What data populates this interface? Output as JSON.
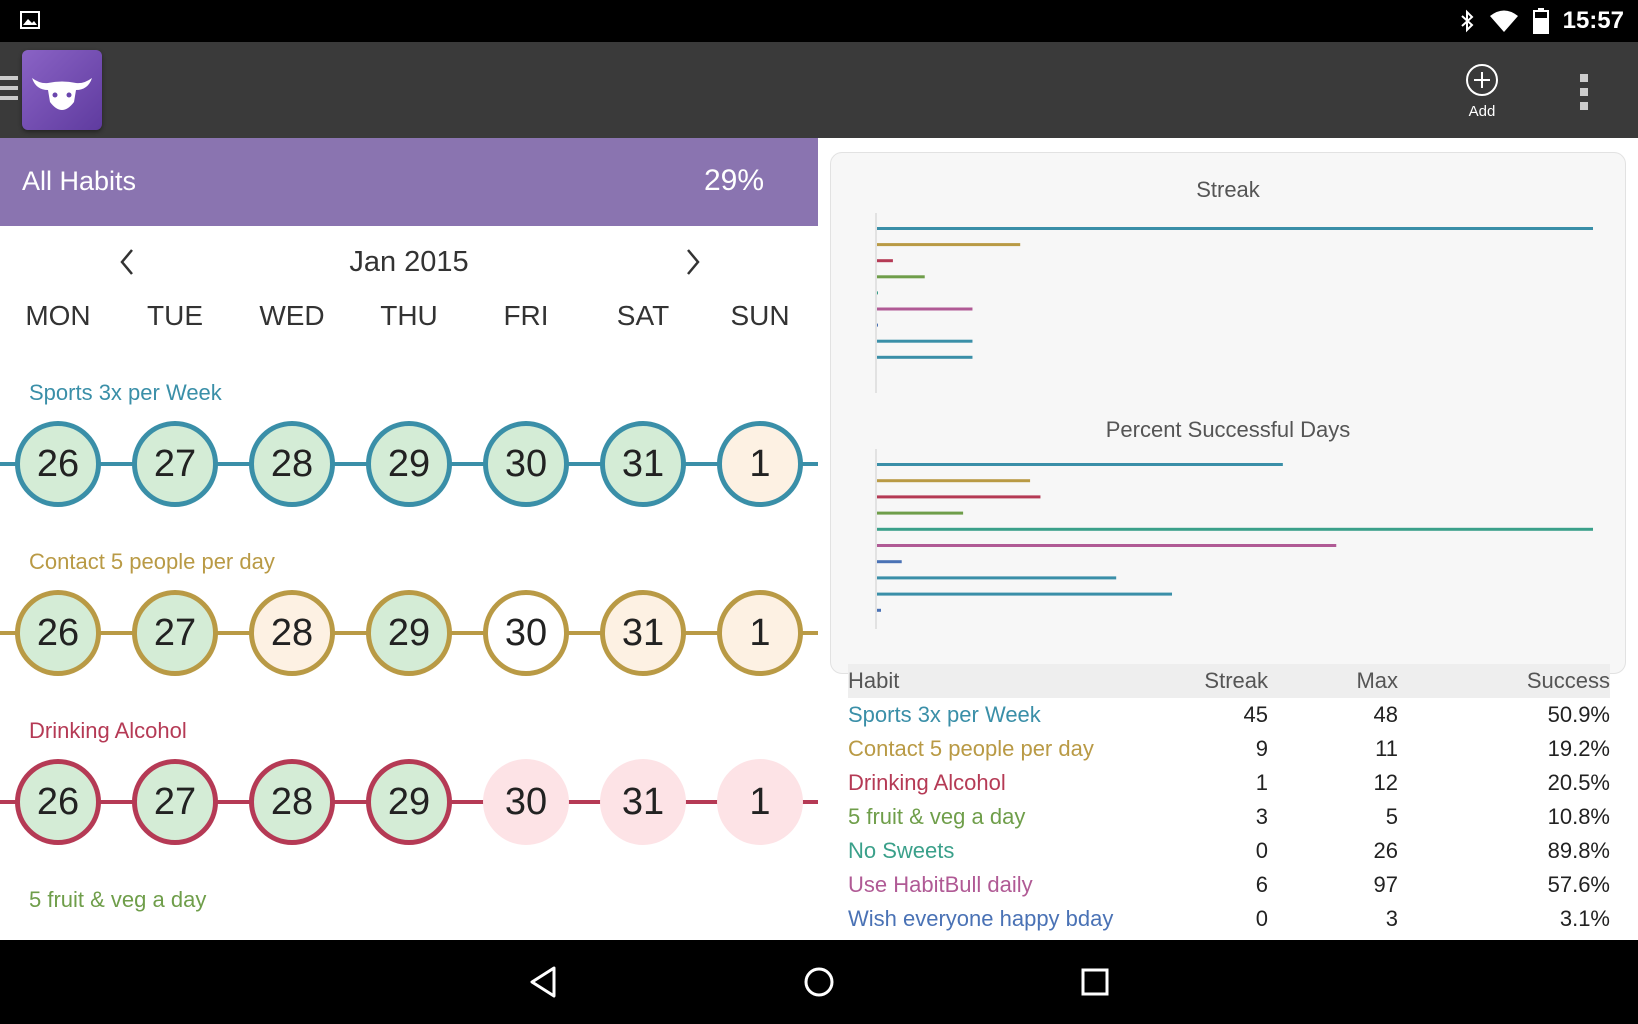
{
  "status_bar": {
    "time": "15:57",
    "icons": [
      "image-icon",
      "bluetooth-icon",
      "wifi-icon",
      "battery-icon"
    ]
  },
  "app_bar": {
    "add_label": "Add",
    "logo": "bull-logo"
  },
  "summary": {
    "title": "All Habits",
    "percent": "29%",
    "color": "#8a74b0"
  },
  "calendar": {
    "month": "Jan 2015",
    "weekdays": [
      "MON",
      "TUE",
      "WED",
      "THU",
      "FRI",
      "SAT",
      "SUN"
    ]
  },
  "habits": [
    {
      "name": "Sports 3x per Week",
      "color": "#3a8fa8",
      "days": [
        {
          "n": "26",
          "state": "done"
        },
        {
          "n": "27",
          "state": "done"
        },
        {
          "n": "28",
          "state": "done"
        },
        {
          "n": "29",
          "state": "done"
        },
        {
          "n": "30",
          "state": "done"
        },
        {
          "n": "31",
          "state": "done"
        },
        {
          "n": "1",
          "state": "pending"
        }
      ]
    },
    {
      "name": "Contact 5 people per day",
      "color": "#b99a45",
      "days": [
        {
          "n": "26",
          "state": "done"
        },
        {
          "n": "27",
          "state": "done"
        },
        {
          "n": "28",
          "state": "pending"
        },
        {
          "n": "29",
          "state": "done"
        },
        {
          "n": "30",
          "state": "empty"
        },
        {
          "n": "31",
          "state": "pending"
        },
        {
          "n": "1",
          "state": "pending"
        }
      ]
    },
    {
      "name": "Drinking Alcohol",
      "color": "#b53a55",
      "days": [
        {
          "n": "26",
          "state": "done"
        },
        {
          "n": "27",
          "state": "done"
        },
        {
          "n": "28",
          "state": "done"
        },
        {
          "n": "29",
          "state": "done"
        },
        {
          "n": "30",
          "state": "failed"
        },
        {
          "n": "31",
          "state": "failed"
        },
        {
          "n": "1",
          "state": "failed"
        }
      ]
    },
    {
      "name": "5 fruit & veg a day",
      "color": "#6f9e4a",
      "days": []
    }
  ],
  "charts": {
    "streak_title": "Streak",
    "percent_title": "Percent Successful Days"
  },
  "chart_data": [
    {
      "type": "bar",
      "title": "Streak",
      "categories": [
        "Sports 3x per Week",
        "Contact 5 people per day",
        "Drinking Alcohol",
        "5 fruit & veg a day",
        "No Sweets",
        "Use HabitBull daily",
        "Wish everyone happy bday",
        "",
        ""
      ],
      "values": [
        45,
        9,
        1,
        3,
        0,
        6,
        0,
        6,
        6
      ],
      "colors": [
        "#3a8fa8",
        "#b99a45",
        "#b53a55",
        "#6f9e4a",
        "#3aa08a",
        "#b05a95",
        "#4a72b5",
        "#3a8fa8",
        "#3a8fa8"
      ],
      "xlim": [
        0,
        45
      ]
    },
    {
      "type": "bar",
      "title": "Percent Successful Days",
      "categories": [
        "Sports 3x per Week",
        "Contact 5 people per day",
        "Drinking Alcohol",
        "5 fruit & veg a day",
        "No Sweets",
        "Use HabitBull daily",
        "Wish everyone happy bday",
        "",
        "",
        ""
      ],
      "values": [
        50.9,
        19.2,
        20.5,
        10.8,
        89.8,
        57.6,
        3.1,
        30,
        37,
        0.5
      ],
      "colors": [
        "#3a8fa8",
        "#b99a45",
        "#b53a55",
        "#6f9e4a",
        "#3aa08a",
        "#b05a95",
        "#4a72b5",
        "#3a8fa8",
        "#3a8fa8",
        "#4a72b5"
      ],
      "xlim": [
        0,
        89.8
      ]
    }
  ],
  "table": {
    "headers": [
      "Habit",
      "Streak",
      "Max",
      "Success"
    ],
    "rows": [
      {
        "habit": "Sports 3x per Week",
        "streak": "45",
        "max": "48",
        "success": "50.9%",
        "color": "#3a8fa8"
      },
      {
        "habit": "Contact 5 people per day",
        "streak": "9",
        "max": "11",
        "success": "19.2%",
        "color": "#b99a45"
      },
      {
        "habit": "Drinking Alcohol",
        "streak": "1",
        "max": "12",
        "success": "20.5%",
        "color": "#b53a55"
      },
      {
        "habit": "5 fruit & veg a day",
        "streak": "3",
        "max": "5",
        "success": "10.8%",
        "color": "#6f9e4a"
      },
      {
        "habit": "No Sweets",
        "streak": "0",
        "max": "26",
        "success": "89.8%",
        "color": "#3aa08a"
      },
      {
        "habit": "Use HabitBull daily",
        "streak": "6",
        "max": "97",
        "success": "57.6%",
        "color": "#b05a95"
      },
      {
        "habit": "Wish everyone happy bday",
        "streak": "0",
        "max": "3",
        "success": "3.1%",
        "color": "#4a72b5"
      }
    ]
  },
  "state_colors": {
    "done": "#d4ecd6",
    "pending": "#fdf1e3",
    "failed": "#fde3e6",
    "empty": "#ffffff"
  }
}
